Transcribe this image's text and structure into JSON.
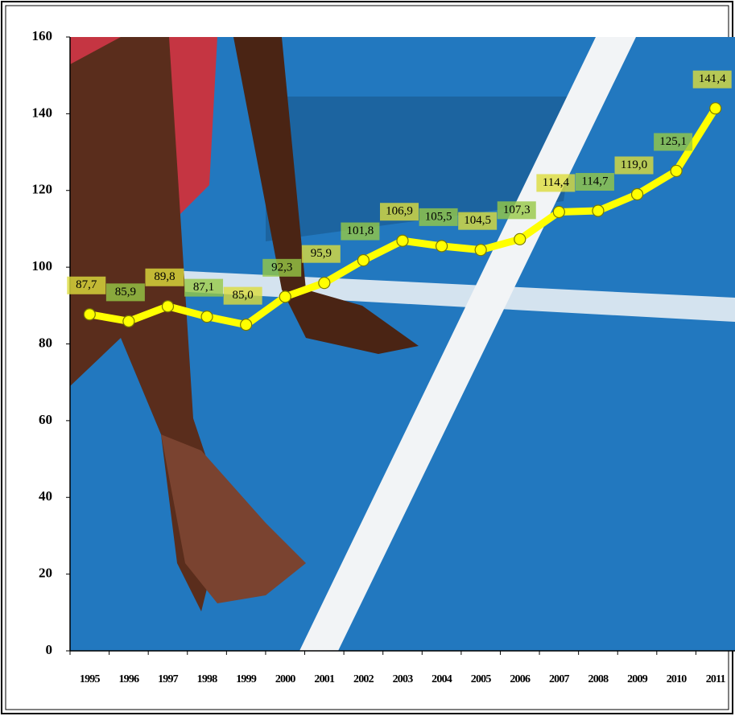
{
  "chart_data": {
    "type": "line",
    "categories": [
      "1995",
      "1996",
      "1997",
      "1998",
      "1999",
      "2000",
      "2001",
      "2002",
      "2003",
      "2004",
      "2005",
      "2006",
      "2007",
      "2008",
      "2009",
      "2010",
      "2011"
    ],
    "values": [
      87.7,
      85.9,
      89.8,
      87.1,
      85.0,
      92.3,
      95.9,
      101.8,
      106.9,
      105.5,
      104.5,
      107.3,
      114.4,
      114.7,
      119.0,
      125.1,
      141.4
    ],
    "value_labels": [
      "87,7",
      "85,9",
      "89,8",
      "87,1",
      "85,0",
      "92,3",
      "95,9",
      "101,8",
      "106,9",
      "105,5",
      "104,5",
      "107,3",
      "114,4",
      "114,7",
      "119,0",
      "125,1",
      "141,4"
    ],
    "color": "#ffff00",
    "ylim": [
      0,
      160
    ],
    "yticks": [
      0,
      20,
      40,
      60,
      80,
      100,
      120,
      140,
      160
    ]
  }
}
